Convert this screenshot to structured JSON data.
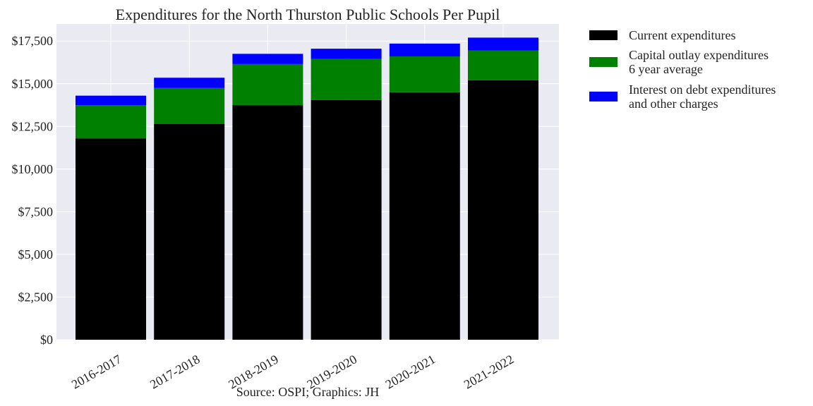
{
  "chart_data": {
    "type": "bar",
    "stacked": true,
    "title": "Expenditures for the North Thurston Public Schools Per Pupil",
    "xlabel": "",
    "ylabel": "",
    "categories": [
      "2016-2017",
      "2017-2018",
      "2018-2019",
      "2019-2020",
      "2020-2021",
      "2021-2022"
    ],
    "series": [
      {
        "name": "Current expenditures",
        "color": "#000000",
        "values": [
          11800,
          12650,
          13750,
          14050,
          14500,
          15200
        ]
      },
      {
        "name": "Capital outlay expenditures\n6 year average",
        "color": "#008000",
        "values": [
          1950,
          2100,
          2400,
          2400,
          2100,
          1750
        ]
      },
      {
        "name": "Interest on debt expenditures\nand other charges",
        "color": "#0000ff",
        "values": [
          550,
          600,
          600,
          600,
          750,
          750
        ]
      }
    ],
    "ylim": [
      0,
      18500
    ],
    "yticks": [
      0,
      2500,
      5000,
      7500,
      10000,
      12500,
      15000,
      17500
    ],
    "ytick_labels": [
      "$0",
      "$2,500",
      "$5,000",
      "$7,500",
      "$10,000",
      "$12,500",
      "$15,000",
      "$17,500"
    ],
    "grid": true,
    "legend_position": "outside right, top",
    "caption": "Source: OSPI; Graphics: JH"
  }
}
